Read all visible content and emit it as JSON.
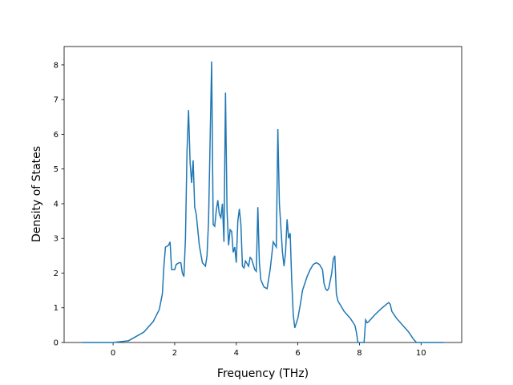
{
  "chart_data": {
    "type": "line",
    "xlabel": "Frequency (THz)",
    "ylabel": "Density of States",
    "x": [
      -1,
      0,
      0.5,
      1.0,
      1.3,
      1.5,
      1.6,
      1.65,
      1.7,
      1.8,
      1.85,
      1.9,
      2.0,
      2.05,
      2.15,
      2.2,
      2.25,
      2.3,
      2.35,
      2.4,
      2.45,
      2.5,
      2.55,
      2.6,
      2.65,
      2.7,
      2.8,
      2.9,
      3.0,
      3.05,
      3.1,
      3.15,
      3.2,
      3.25,
      3.3,
      3.35,
      3.4,
      3.45,
      3.5,
      3.55,
      3.6,
      3.65,
      3.7,
      3.75,
      3.8,
      3.85,
      3.9,
      3.95,
      4.0,
      4.05,
      4.1,
      4.15,
      4.2,
      4.25,
      4.3,
      4.4,
      4.45,
      4.5,
      4.6,
      4.65,
      4.7,
      4.75,
      4.8,
      4.9,
      5.0,
      5.1,
      5.2,
      5.3,
      5.35,
      5.4,
      5.5,
      5.55,
      5.6,
      5.65,
      5.7,
      5.75,
      5.8,
      5.85,
      5.9,
      6.0,
      6.05,
      6.1,
      6.15,
      6.3,
      6.4,
      6.5,
      6.6,
      6.7,
      6.8,
      6.85,
      6.9,
      6.95,
      7.0,
      7.1,
      7.15,
      7.2,
      7.25,
      7.3,
      7.5,
      7.7,
      7.85,
      7.9,
      7.95,
      8.15,
      8.2,
      8.25,
      8.3,
      8.5,
      8.7,
      8.9,
      8.95,
      9.0,
      9.05,
      9.2,
      9.4,
      9.6,
      9.75,
      9.85,
      10.73
    ],
    "series": [
      {
        "color": "#1f77b4",
        "values": [
          0,
          0,
          0.05,
          0.3,
          0.6,
          0.95,
          1.4,
          2.2,
          2.75,
          2.8,
          2.9,
          2.1,
          2.1,
          2.25,
          2.3,
          2.3,
          2.0,
          1.9,
          3.0,
          5.5,
          6.7,
          5.2,
          4.6,
          5.25,
          3.9,
          3.7,
          2.8,
          2.3,
          2.2,
          2.5,
          3.5,
          5.8,
          8.1,
          3.4,
          3.35,
          3.8,
          4.1,
          3.7,
          3.6,
          4.0,
          2.9,
          7.2,
          3.8,
          2.8,
          3.25,
          3.2,
          2.6,
          2.75,
          2.3,
          3.5,
          3.85,
          3.4,
          2.2,
          2.15,
          2.35,
          2.2,
          2.45,
          2.4,
          2.1,
          2.05,
          3.9,
          2.3,
          1.8,
          1.6,
          1.55,
          2.1,
          2.9,
          2.75,
          6.15,
          4.0,
          2.6,
          2.2,
          2.6,
          3.55,
          3.0,
          3.15,
          1.8,
          0.8,
          0.42,
          0.7,
          0.95,
          1.2,
          1.5,
          1.9,
          2.1,
          2.25,
          2.3,
          2.25,
          2.1,
          1.7,
          1.55,
          1.5,
          1.55,
          2.0,
          2.4,
          2.5,
          1.4,
          1.2,
          0.9,
          0.7,
          0.5,
          0.3,
          0,
          0,
          0.65,
          0.57,
          0.6,
          0.8,
          0.97,
          1.12,
          1.15,
          1.1,
          0.9,
          0.7,
          0.5,
          0.3,
          0.1,
          0,
          0
        ]
      }
    ],
    "xlim": [
      -1.59,
      11.32
    ],
    "ylim": [
      0,
      8.53
    ],
    "xticks": [
      0,
      2,
      4,
      6,
      8,
      10
    ],
    "yticks": [
      0,
      1,
      2,
      3,
      4,
      5,
      6,
      7,
      8
    ]
  }
}
